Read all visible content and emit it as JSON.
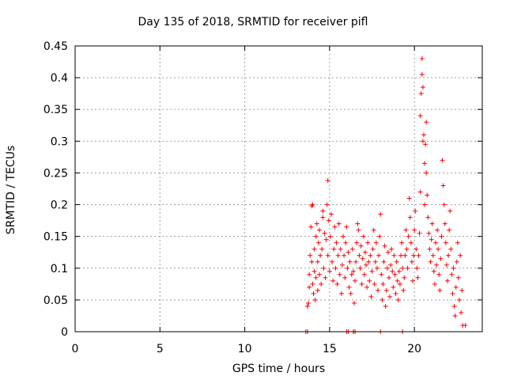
{
  "chart_data": {
    "type": "scatter",
    "title": "Day 135 of 2018, SRMTID for receiver pifl",
    "xlabel": "GPS time / hours",
    "ylabel": "SRMTID / TECUs",
    "xlim": [
      0,
      24
    ],
    "ylim": [
      0,
      0.45
    ],
    "xticks": [
      0,
      5,
      10,
      15,
      20
    ],
    "yticks": [
      0,
      0.05,
      0.1,
      0.15,
      0.2,
      0.25,
      0.3,
      0.35,
      0.4,
      0.45
    ],
    "grid": true,
    "marker": "+",
    "marker_color": "#ff0000",
    "series": [
      {
        "points": [
          [
            13.6,
            0.0
          ],
          [
            13.7,
            0.0
          ],
          [
            16.0,
            0.0
          ],
          [
            16.1,
            0.0
          ],
          [
            16.4,
            0.0
          ],
          [
            16.5,
            0.0
          ],
          [
            18.0,
            0.0
          ],
          [
            19.3,
            0.0
          ],
          [
            13.7,
            0.04
          ],
          [
            13.75,
            0.045
          ],
          [
            13.8,
            0.07
          ],
          [
            13.8,
            0.09
          ],
          [
            13.85,
            0.12
          ],
          [
            13.9,
            0.165
          ],
          [
            13.95,
            0.198
          ],
          [
            14.0,
            0.2
          ],
          [
            13.95,
            0.11
          ],
          [
            14.0,
            0.075
          ],
          [
            14.05,
            0.06
          ],
          [
            14.1,
            0.095
          ],
          [
            14.1,
            0.13
          ],
          [
            14.15,
            0.05
          ],
          [
            14.2,
            0.085
          ],
          [
            14.2,
            0.15
          ],
          [
            14.25,
            0.17
          ],
          [
            14.3,
            0.11
          ],
          [
            14.3,
            0.065
          ],
          [
            14.35,
            0.14
          ],
          [
            14.4,
            0.16
          ],
          [
            14.4,
            0.09
          ],
          [
            14.45,
            0.12
          ],
          [
            14.5,
            0.075
          ],
          [
            14.55,
            0.13
          ],
          [
            14.6,
            0.18
          ],
          [
            14.6,
            0.19
          ],
          [
            14.65,
            0.1
          ],
          [
            14.7,
            0.155
          ],
          [
            14.75,
            0.085
          ],
          [
            14.8,
            0.145
          ],
          [
            14.85,
            0.2
          ],
          [
            14.9,
            0.238
          ],
          [
            14.9,
            0.12
          ],
          [
            14.95,
            0.175
          ],
          [
            15.0,
            0.095
          ],
          [
            15.05,
            0.15
          ],
          [
            15.1,
            0.185
          ],
          [
            15.15,
            0.11
          ],
          [
            15.2,
            0.08
          ],
          [
            15.25,
            0.13
          ],
          [
            15.3,
            0.165
          ],
          [
            15.35,
            0.1
          ],
          [
            15.4,
            0.14
          ],
          [
            15.45,
            0.075
          ],
          [
            15.5,
            0.12
          ],
          [
            15.55,
            0.17
          ],
          [
            15.6,
            0.09
          ],
          [
            15.65,
            0.13
          ],
          [
            15.7,
            0.06
          ],
          [
            15.75,
            0.105
          ],
          [
            15.8,
            0.15
          ],
          [
            15.85,
            0.12
          ],
          [
            15.9,
            0.085
          ],
          [
            15.95,
            0.14
          ],
          [
            16.0,
            0.165
          ],
          [
            16.05,
            0.1
          ],
          [
            16.1,
            0.125
          ],
          [
            16.15,
            0.07
          ],
          [
            16.2,
            0.11
          ],
          [
            16.25,
            0.06
          ],
          [
            16.3,
            0.09
          ],
          [
            16.35,
            0.13
          ],
          [
            16.4,
            0.095
          ],
          [
            16.45,
            0.045
          ],
          [
            16.5,
            0.08
          ],
          [
            16.55,
            0.11
          ],
          [
            16.6,
            0.14
          ],
          [
            16.65,
            0.17
          ],
          [
            16.7,
            0.16
          ],
          [
            16.75,
            0.12
          ],
          [
            16.8,
            0.1
          ],
          [
            16.85,
            0.135
          ],
          [
            16.9,
            0.075
          ],
          [
            16.95,
            0.115
          ],
          [
            17.0,
            0.15
          ],
          [
            17.05,
            0.09
          ],
          [
            17.1,
            0.125
          ],
          [
            17.15,
            0.105
          ],
          [
            17.2,
            0.07
          ],
          [
            17.25,
            0.14
          ],
          [
            17.3,
            0.11
          ],
          [
            17.35,
            0.08
          ],
          [
            17.4,
            0.12
          ],
          [
            17.45,
            0.055
          ],
          [
            17.5,
            0.095
          ],
          [
            17.55,
            0.13
          ],
          [
            17.6,
            0.16
          ],
          [
            17.65,
            0.075
          ],
          [
            17.7,
            0.11
          ],
          [
            17.75,
            0.14
          ],
          [
            17.8,
            0.1
          ],
          [
            17.85,
            0.065
          ],
          [
            17.9,
            0.12
          ],
          [
            17.95,
            0.15
          ],
          [
            18.0,
            0.185
          ],
          [
            18.05,
            0.09
          ],
          [
            18.1,
            0.05
          ],
          [
            18.15,
            0.075
          ],
          [
            18.2,
            0.11
          ],
          [
            18.25,
            0.135
          ],
          [
            18.3,
            0.04
          ],
          [
            18.35,
            0.065
          ],
          [
            18.4,
            0.1
          ],
          [
            18.45,
            0.125
          ],
          [
            18.5,
            0.085
          ],
          [
            18.55,
            0.055
          ],
          [
            18.6,
            0.105
          ],
          [
            18.65,
            0.13
          ],
          [
            18.7,
            0.095
          ],
          [
            18.75,
            0.07
          ],
          [
            18.8,
            0.12
          ],
          [
            18.85,
            0.09
          ],
          [
            18.9,
            0.06
          ],
          [
            18.95,
            0.11
          ],
          [
            19.0,
            0.08
          ],
          [
            19.05,
            0.05
          ],
          [
            19.1,
            0.095
          ],
          [
            19.15,
            0.075
          ],
          [
            19.2,
            0.12
          ],
          [
            19.25,
            0.14
          ],
          [
            19.3,
            0.1
          ],
          [
            19.35,
            0.065
          ],
          [
            19.4,
            0.085
          ],
          [
            19.45,
            0.12
          ],
          [
            19.5,
            0.16
          ],
          [
            19.55,
            0.13
          ],
          [
            19.6,
            0.1
          ],
          [
            19.65,
            0.15
          ],
          [
            19.7,
            0.21
          ],
          [
            19.75,
            0.18
          ],
          [
            19.8,
            0.14
          ],
          [
            19.85,
            0.11
          ],
          [
            19.9,
            0.08
          ],
          [
            19.95,
            0.12
          ],
          [
            20.0,
            0.16
          ],
          [
            20.05,
            0.19
          ],
          [
            20.1,
            0.13
          ],
          [
            20.15,
            0.1
          ],
          [
            20.2,
            0.085
          ],
          [
            20.25,
            0.12
          ],
          [
            20.3,
            0.155
          ],
          [
            20.35,
            0.34
          ],
          [
            20.35,
            0.22
          ],
          [
            20.4,
            0.375
          ],
          [
            20.45,
            0.43
          ],
          [
            20.45,
            0.405
          ],
          [
            20.5,
            0.385
          ],
          [
            20.5,
            0.3
          ],
          [
            20.55,
            0.31
          ],
          [
            20.6,
            0.265
          ],
          [
            20.6,
            0.2
          ],
          [
            20.65,
            0.295
          ],
          [
            20.7,
            0.33
          ],
          [
            20.7,
            0.25
          ],
          [
            20.75,
            0.215
          ],
          [
            20.8,
            0.18
          ],
          [
            20.85,
            0.155
          ],
          [
            20.9,
            0.13
          ],
          [
            20.95,
            0.11
          ],
          [
            21.0,
            0.145
          ],
          [
            21.05,
            0.17
          ],
          [
            21.1,
            0.12
          ],
          [
            21.15,
            0.095
          ],
          [
            21.2,
            0.075
          ],
          [
            21.25,
            0.14
          ],
          [
            21.3,
            0.105
          ],
          [
            21.35,
            0.16
          ],
          [
            21.4,
            0.13
          ],
          [
            21.45,
            0.09
          ],
          [
            21.5,
            0.065
          ],
          [
            21.55,
            0.115
          ],
          [
            21.6,
            0.15
          ],
          [
            21.65,
            0.27
          ],
          [
            21.7,
            0.23
          ],
          [
            21.75,
            0.2
          ],
          [
            21.8,
            0.17
          ],
          [
            21.85,
            0.14
          ],
          [
            21.9,
            0.105
          ],
          [
            21.95,
            0.08
          ],
          [
            22.0,
            0.12
          ],
          [
            22.05,
            0.16
          ],
          [
            22.1,
            0.19
          ],
          [
            22.15,
            0.13
          ],
          [
            22.2,
            0.09
          ],
          [
            22.25,
            0.06
          ],
          [
            22.3,
            0.1
          ],
          [
            22.35,
            0.04
          ],
          [
            22.4,
            0.025
          ],
          [
            22.45,
            0.07
          ],
          [
            22.5,
            0.11
          ],
          [
            22.55,
            0.14
          ],
          [
            22.6,
            0.085
          ],
          [
            22.65,
            0.05
          ],
          [
            22.7,
            0.12
          ],
          [
            22.75,
            0.03
          ],
          [
            22.8,
            0.065
          ],
          [
            22.85,
            0.01
          ],
          [
            23.0,
            0.01
          ]
        ]
      }
    ]
  }
}
